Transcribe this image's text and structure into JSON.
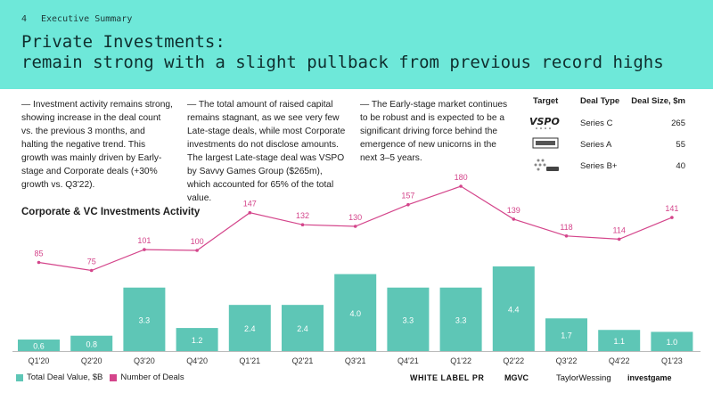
{
  "header": {
    "page_number": "4",
    "section": "Executive Summary",
    "title_line1": "Private Investments:",
    "title_line2": "remain strong with a slight pullback from previous record highs"
  },
  "paragraphs": [
    "— Investment activity remains strong, showing increase in the deal count vs. the previous 3 months, and halting the negative trend. This growth was mainly driven by Early-stage and Corporate deals (+30% growth vs. Q3'22).",
    "— The total amount of raised capital remains stagnant, as we see very few Late-stage deals, while most Corporate investments do not disclose amounts. The largest Late-stage deal was VSPO by Savvy Games Group ($265m), which accounted for 65% of the total value.",
    "— The Early-stage market continues to be robust and is expected to be a significant driving force behind the emergence of new unicorns in the next 3–5 years."
  ],
  "deals_table": {
    "headers": [
      "Target",
      "Deal Type",
      "Deal Size, $m"
    ],
    "rows": [
      {
        "target_logo": "vspo-logo",
        "logo_text": "VSPO",
        "deal_type": "Series C",
        "deal_size": "265"
      },
      {
        "target_logo": "company-logo-2",
        "logo_text": "",
        "deal_type": "Series A",
        "deal_size": "55"
      },
      {
        "target_logo": "company-logo-3",
        "logo_text": "",
        "deal_type": "Series B+",
        "deal_size": "40"
      }
    ]
  },
  "chart_data": {
    "type": "bar",
    "title": "Corporate & VC Investments Activity",
    "categories": [
      "Q1'20",
      "Q2'20",
      "Q3'20",
      "Q4'20",
      "Q1'21",
      "Q2'21",
      "Q3'21",
      "Q4'21",
      "Q1'22",
      "Q2'22",
      "Q3'22",
      "Q4'22",
      "Q1'23"
    ],
    "series": [
      {
        "name": "Total Deal Value, $B",
        "kind": "bar",
        "color": "#5ec6b6",
        "values": [
          0.6,
          0.8,
          3.3,
          1.2,
          2.4,
          2.4,
          4.0,
          3.3,
          3.3,
          4.4,
          1.7,
          1.1,
          1.0
        ]
      },
      {
        "name": "Number of Deals",
        "kind": "line",
        "color": "#d4458b",
        "values": [
          85,
          75,
          101,
          100,
          147,
          132,
          130,
          157,
          180,
          139,
          118,
          114,
          141
        ]
      }
    ],
    "bar_value_labels": [
      "0.6",
      "0.8",
      "3.3",
      "1.2",
      "2.4",
      "2.4",
      "4.0",
      "3.3",
      "3.3",
      "4.4",
      "1.7",
      "1.1",
      "1.0"
    ],
    "line_value_labels": [
      "85",
      "75",
      "101",
      "100",
      "147",
      "132",
      "130",
      "157",
      "180",
      "139",
      "118",
      "114",
      "141"
    ],
    "grid": false,
    "legend": "bottom-left"
  },
  "partners": [
    "WHITE LABEL PR",
    "MGVC",
    "TaylorWessing",
    "investgame"
  ],
  "colors": {
    "header_bg": "#6ee8d9",
    "bar": "#5ec6b6",
    "line": "#d4458b"
  }
}
